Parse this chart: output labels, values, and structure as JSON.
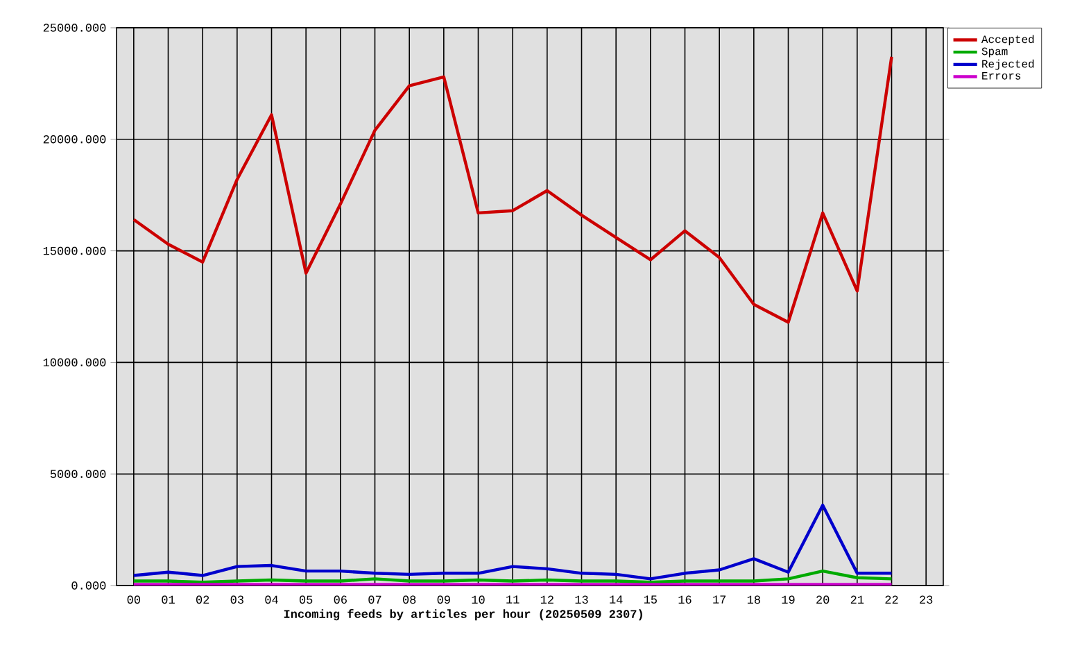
{
  "chart_data": {
    "type": "line",
    "xlabel": "Incoming feeds by articles per hour (20250509 2307)",
    "categories": [
      "00",
      "01",
      "02",
      "03",
      "04",
      "05",
      "06",
      "07",
      "08",
      "09",
      "10",
      "11",
      "12",
      "13",
      "14",
      "15",
      "16",
      "17",
      "18",
      "19",
      "20",
      "21",
      "22",
      "23"
    ],
    "series": [
      {
        "name": "Accepted",
        "color": "#cc0000",
        "values": [
          16400,
          15300,
          14500,
          18200,
          21100,
          14000,
          17100,
          20400,
          22400,
          22800,
          16700,
          16800,
          17700,
          16600,
          15600,
          14600,
          15900,
          14700,
          12600,
          11800,
          16700,
          13200,
          23700,
          null
        ]
      },
      {
        "name": "Spam",
        "color": "#00aa00",
        "values": [
          200,
          200,
          150,
          200,
          250,
          200,
          200,
          300,
          200,
          200,
          250,
          200,
          250,
          200,
          200,
          150,
          200,
          200,
          200,
          300,
          650,
          350,
          300,
          null
        ]
      },
      {
        "name": "Rejected",
        "color": "#0000cc",
        "values": [
          450,
          600,
          450,
          850,
          900,
          650,
          650,
          550,
          500,
          550,
          550,
          850,
          750,
          550,
          500,
          300,
          550,
          700,
          1200,
          600,
          3600,
          550,
          550,
          null
        ]
      },
      {
        "name": "Errors",
        "color": "#cc00cc",
        "values": [
          50,
          50,
          50,
          50,
          50,
          50,
          50,
          50,
          50,
          50,
          50,
          50,
          50,
          50,
          50,
          50,
          50,
          50,
          50,
          50,
          50,
          50,
          50,
          null
        ]
      }
    ],
    "ylim": [
      0,
      25000
    ],
    "yticks": [
      {
        "value": 0,
        "label": "0.000"
      },
      {
        "value": 5000,
        "label": "5000.000"
      },
      {
        "value": 10000,
        "label": "10000.000"
      },
      {
        "value": 15000,
        "label": "15000.000"
      },
      {
        "value": 20000,
        "label": "20000.000"
      },
      {
        "value": 25000,
        "label": "25000.000"
      }
    ],
    "grid": true,
    "legend": "top right",
    "marker": "none",
    "line_style": "solid"
  }
}
